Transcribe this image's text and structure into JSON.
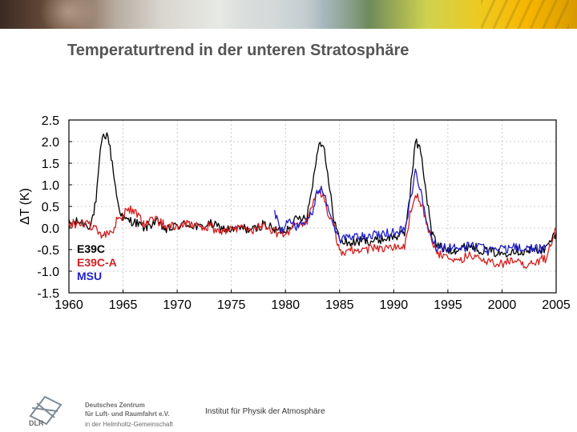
{
  "slide": {
    "title": "Temperaturtrend in der unteren Stratosphäre",
    "footer": "Institut für Physik der Atmosphäre"
  },
  "logo": {
    "abbr": "DLR",
    "line1": "Deutsches Zentrum",
    "line2": "für Luft- und Raumfahrt e.V.",
    "line3": "in der Helmholtz-Gemeinschaft"
  },
  "chart_data": {
    "type": "line",
    "ylabel": "ΔT (K)",
    "xlabel": "",
    "xlim": [
      1960,
      2005
    ],
    "ylim": [
      -1.5,
      2.5
    ],
    "x_ticks": [
      1960,
      1965,
      1970,
      1975,
      1980,
      1985,
      1990,
      1995,
      2000,
      2005
    ],
    "y_ticks": [
      2.5,
      2.0,
      1.5,
      1.0,
      0.5,
      0.0,
      -0.5,
      -1.0,
      -1.5
    ],
    "legend": {
      "placement": "bottom-left"
    },
    "series": [
      {
        "name": "E39C",
        "color": "#000000",
        "x": [
          1960,
          1961,
          1962,
          1962.5,
          1963,
          1963.3,
          1963.6,
          1964,
          1964.5,
          1965,
          1966,
          1967,
          1968,
          1969,
          1970,
          1971,
          1972,
          1973,
          1974,
          1975,
          1976,
          1977,
          1978,
          1979,
          1980,
          1981,
          1982,
          1982.5,
          1983,
          1983.5,
          1984,
          1984.5,
          1985,
          1986,
          1987,
          1988,
          1989,
          1990,
          1991,
          1991.5,
          1992,
          1992.5,
          1993,
          1993.5,
          1994,
          1995,
          1996,
          1997,
          1998,
          1999,
          2000,
          2001,
          2002,
          2003,
          2004,
          2005
        ],
        "values": [
          0.1,
          0.15,
          0.05,
          0.6,
          2.0,
          2.15,
          2.15,
          1.5,
          0.6,
          0.2,
          0.15,
          0.0,
          0.15,
          -0.05,
          0.05,
          0.1,
          0.0,
          0.1,
          0.0,
          -0.05,
          0.0,
          -0.05,
          0.1,
          -0.05,
          -0.05,
          0.2,
          0.3,
          1.0,
          1.9,
          2.0,
          1.0,
          0.2,
          -0.3,
          -0.35,
          -0.3,
          -0.3,
          -0.25,
          -0.2,
          -0.15,
          0.8,
          2.0,
          1.8,
          0.8,
          -0.1,
          -0.4,
          -0.5,
          -0.5,
          -0.4,
          -0.5,
          -0.55,
          -0.6,
          -0.5,
          -0.55,
          -0.5,
          -0.5,
          -0.1
        ]
      },
      {
        "name": "E39C-A",
        "color": "#d42020",
        "x": [
          1960,
          1961,
          1962,
          1963,
          1964,
          1964.5,
          1965,
          1965.5,
          1966,
          1967,
          1968,
          1969,
          1970,
          1971,
          1972,
          1973,
          1974,
          1975,
          1976,
          1977,
          1978,
          1979,
          1980,
          1981,
          1982,
          1982.5,
          1983,
          1983.5,
          1984,
          1984.5,
          1985,
          1986,
          1987,
          1988,
          1989,
          1990,
          1991,
          1991.5,
          1992,
          1992.5,
          1993,
          1993.5,
          1994,
          1995,
          1996,
          1997,
          1998,
          1999,
          2000,
          2001,
          2002,
          2003,
          2004,
          2005
        ],
        "values": [
          0.05,
          0.15,
          0.05,
          -0.15,
          -0.1,
          0.2,
          0.3,
          0.45,
          0.4,
          0.1,
          0.2,
          0.05,
          0.05,
          0.15,
          0.0,
          0.05,
          -0.1,
          -0.05,
          0.0,
          -0.05,
          0.05,
          -0.1,
          -0.1,
          0.05,
          0.15,
          0.5,
          0.9,
          0.7,
          0.3,
          0.0,
          -0.55,
          -0.5,
          -0.55,
          -0.45,
          -0.5,
          -0.45,
          -0.4,
          0.3,
          0.85,
          0.6,
          0.2,
          -0.3,
          -0.6,
          -0.7,
          -0.75,
          -0.6,
          -0.7,
          -0.8,
          -0.85,
          -0.7,
          -0.9,
          -0.8,
          -0.7,
          0.0
        ]
      },
      {
        "name": "MSU",
        "color": "#2020c8",
        "x": [
          1979,
          1979.5,
          1980,
          1980.5,
          1981,
          1981.5,
          1982,
          1982.5,
          1983,
          1983.5,
          1984,
          1984.5,
          1985,
          1986,
          1987,
          1988,
          1989,
          1990,
          1991,
          1991.5,
          1992,
          1992.5,
          1993,
          1993.5,
          1994,
          1995,
          1996,
          1997,
          1998,
          1999,
          2000,
          2001,
          2002,
          2003,
          2004
        ],
        "values": [
          0.4,
          -0.1,
          0.05,
          0.15,
          0.0,
          0.1,
          0.15,
          0.4,
          0.9,
          0.85,
          0.4,
          0.0,
          -0.25,
          -0.2,
          -0.2,
          -0.15,
          -0.15,
          -0.1,
          -0.05,
          0.6,
          1.3,
          0.85,
          0.2,
          -0.25,
          -0.45,
          -0.45,
          -0.5,
          -0.4,
          -0.45,
          -0.55,
          -0.5,
          -0.45,
          -0.5,
          -0.45,
          -0.5
        ]
      }
    ]
  }
}
